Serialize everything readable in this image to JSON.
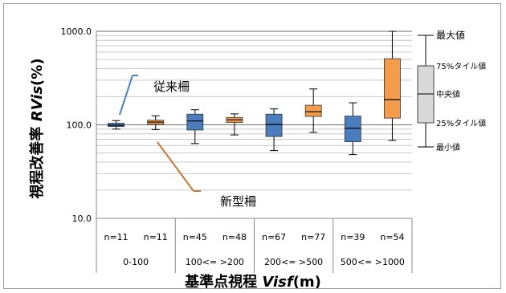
{
  "chart_data": {
    "type": "box",
    "ylabel_main": "視程改善率 ",
    "ylabel_italic": "RVis",
    "ylabel_unit": "(%)",
    "xlabel_main": "基準点視程 ",
    "xlabel_italic": "Visf",
    "xlabel_unit": "(m)",
    "yscale": "log",
    "ylim": [
      10,
      1000
    ],
    "yticks": [
      "10.0",
      "100.0",
      "1000.0"
    ],
    "groups": [
      "0-100",
      "100<= >200",
      "200<= >500",
      "500<= >1000"
    ],
    "series_labels": {
      "old": "従来柵",
      "new": "新型柵"
    },
    "boxes": [
      {
        "group": "0-100",
        "type": "old",
        "n_label": "n=11",
        "min": 90,
        "q1": 96,
        "median": 99,
        "q3": 104,
        "max": 111
      },
      {
        "group": "0-100",
        "type": "new",
        "n_label": "n=11",
        "min": 89,
        "q1": 101,
        "median": 107,
        "q3": 112,
        "max": 125
      },
      {
        "group": "100<= >200",
        "type": "old",
        "n_label": "n=45",
        "min": 63,
        "q1": 88,
        "median": 110,
        "q3": 130,
        "max": 145
      },
      {
        "group": "100<= >200",
        "type": "new",
        "n_label": "n=48",
        "min": 78,
        "q1": 106,
        "median": 113,
        "q3": 120,
        "max": 131
      },
      {
        "group": "200<= >500",
        "type": "old",
        "n_label": "n=67",
        "min": 53,
        "q1": 75,
        "median": 101,
        "q3": 130,
        "max": 148
      },
      {
        "group": "200<= >500",
        "type": "new",
        "n_label": "n=77",
        "min": 83,
        "q1": 123,
        "median": 138,
        "q3": 162,
        "max": 242
      },
      {
        "group": "500<= >1000",
        "type": "old",
        "n_label": "n=39",
        "min": 48,
        "q1": 66,
        "median": 92,
        "q3": 124,
        "max": 172
      },
      {
        "group": "500<= >1000",
        "type": "new",
        "n_label": "n=54",
        "min": 68,
        "q1": 118,
        "median": 186,
        "q3": 510,
        "max": 1000
      }
    ],
    "legend": {
      "max": "最大値",
      "q3": "75%タイル値",
      "median": "中央値",
      "q1": "25%タイル値",
      "min": "最小値"
    },
    "colors": {
      "old": "#4a7dbe",
      "new": "#f59b4c",
      "old_line": "#4a7dbe",
      "new_line": "#c07a3c",
      "legend_box": "#d9d9d9"
    }
  }
}
